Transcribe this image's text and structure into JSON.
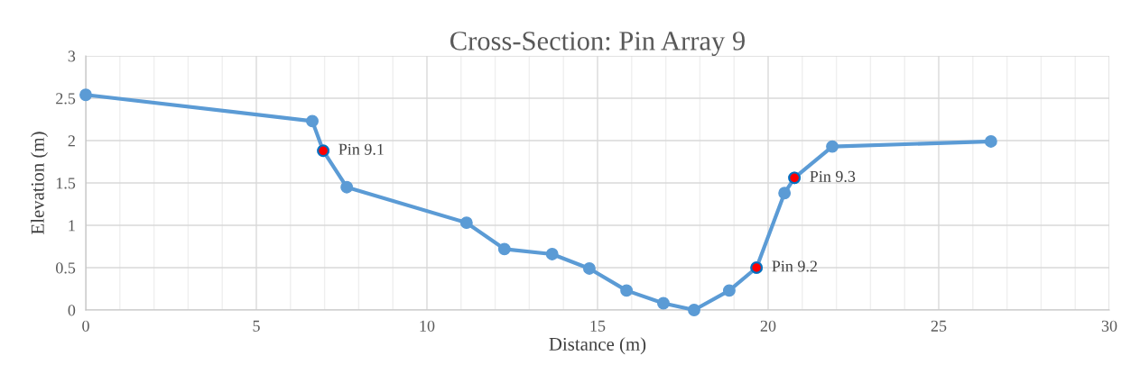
{
  "chart_data": {
    "type": "line",
    "title": "Cross-Section: Pin Array 9",
    "xlabel": "Distance (m)",
    "ylabel": "Elevation (m)",
    "xlim": [
      0,
      30
    ],
    "ylim": [
      0,
      3
    ],
    "xticks": [
      0,
      {
        "value": 1,
        "label": null
      },
      {
        "value": 2,
        "label": null
      },
      {
        "value": 3,
        "label": null
      },
      {
        "value": 4,
        "label": null
      },
      5,
      {
        "value": 6,
        "label": null
      },
      {
        "value": 7,
        "label": null
      },
      {
        "value": 8,
        "label": null
      },
      {
        "value": 9,
        "label": null
      },
      10,
      {
        "value": 11,
        "label": null
      },
      {
        "value": 12,
        "label": null
      },
      {
        "value": 13,
        "label": null
      },
      {
        "value": 14,
        "label": null
      },
      15,
      {
        "value": 16,
        "label": null
      },
      {
        "value": 17,
        "label": null
      },
      {
        "value": 18,
        "label": null
      },
      {
        "value": 19,
        "label": null
      },
      20,
      {
        "value": 21,
        "label": null
      },
      {
        "value": 22,
        "label": null
      },
      {
        "value": 23,
        "label": null
      },
      {
        "value": 24,
        "label": null
      },
      25,
      {
        "value": 26,
        "label": null
      },
      {
        "value": 27,
        "label": null
      },
      {
        "value": 28,
        "label": null
      },
      {
        "value": 29,
        "label": null
      },
      30
    ],
    "yticks": [
      0,
      0.5,
      1,
      1.5,
      2,
      2.5,
      3
    ],
    "grid": true,
    "legend": false,
    "marker": "circle",
    "line_style": "solid",
    "series": [
      {
        "color": "#5b9bd5",
        "x": [
          0,
          6.64,
          6.96,
          7.65,
          11.16,
          12.27,
          13.67,
          14.76,
          15.85,
          16.93,
          17.83,
          18.86,
          19.66,
          20.48,
          20.77,
          21.88,
          26.53
        ],
        "values": [
          2.54,
          2.23,
          1.88,
          1.45,
          1.03,
          0.72,
          0.66,
          0.49,
          0.23,
          0.08,
          0.0,
          0.23,
          0.5,
          1.38,
          1.56,
          1.93,
          1.99
        ]
      },
      {
        "type": "scatter",
        "color": "#ff0000",
        "x": [
          6.96,
          19.66,
          20.77
        ],
        "values": [
          1.88,
          0.5,
          1.56
        ]
      }
    ],
    "annotations": [
      {
        "text": "Pin 9.1",
        "x": 6.96,
        "y": 1.88
      },
      {
        "text": "Pin 9.2",
        "x": 19.66,
        "y": 0.5
      },
      {
        "text": "Pin 9.3",
        "x": 20.77,
        "y": 1.56
      }
    ]
  }
}
